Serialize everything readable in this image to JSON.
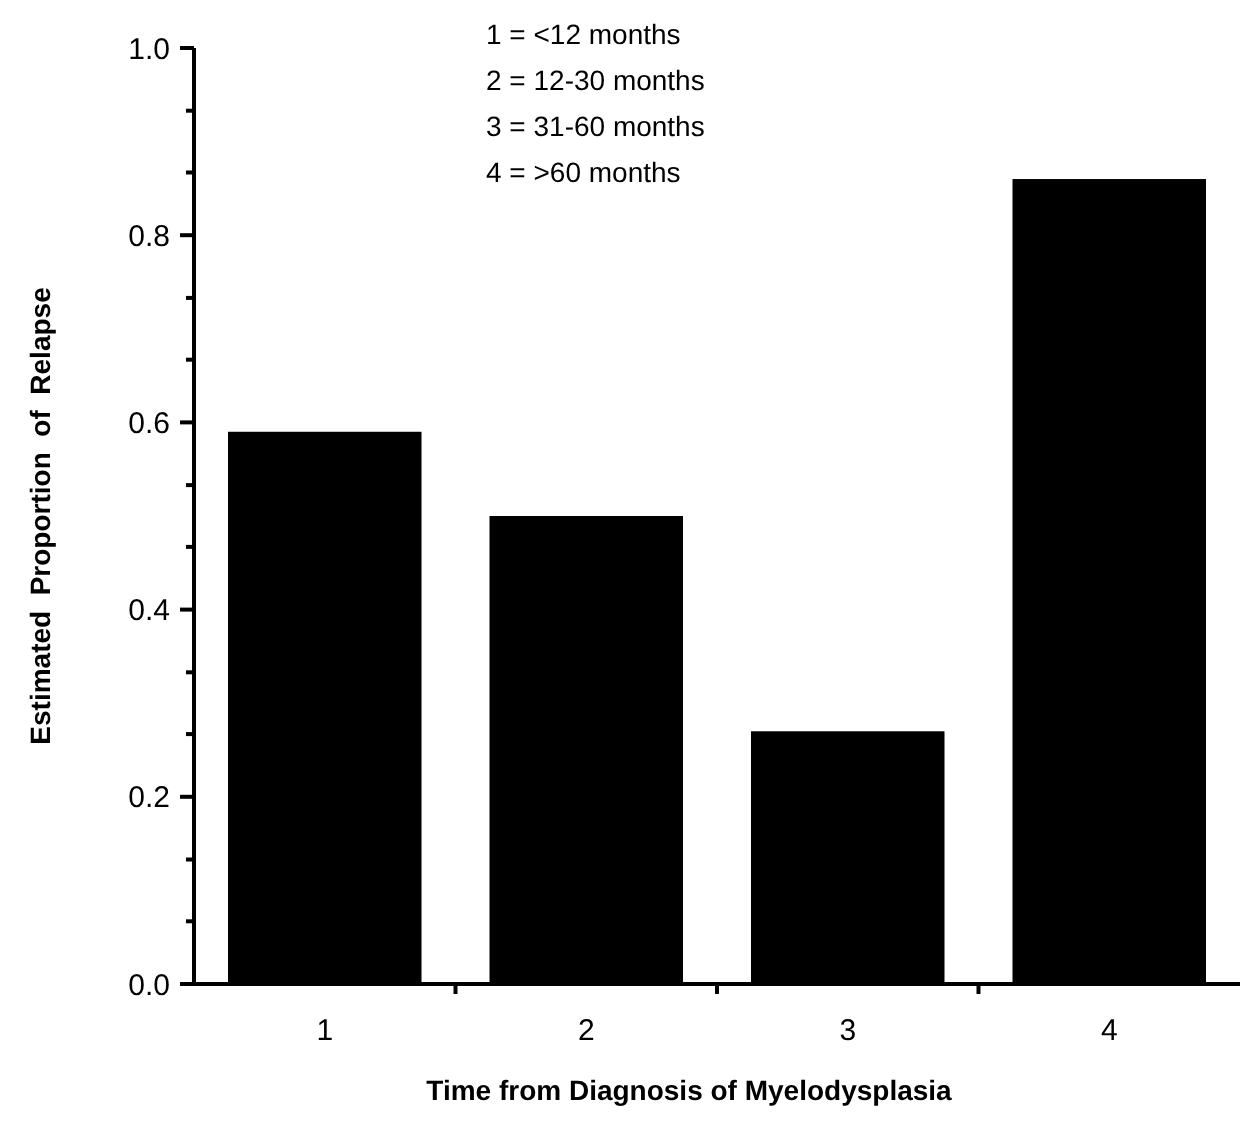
{
  "chart_data": {
    "type": "bar",
    "xlabel": "Time from Diagnosis of Myelodysplasia",
    "ylabel": "Estimated  Proportion  of  Relapse",
    "categories": [
      "1",
      "2",
      "3",
      "4"
    ],
    "values": [
      0.59,
      0.5,
      0.27,
      0.86
    ],
    "color": "#000000",
    "ylim": [
      0,
      1
    ],
    "yticks": [
      {
        "value": 0,
        "label": "0.0"
      },
      {
        "value": 0.067,
        "label": null
      },
      {
        "value": 0.133,
        "label": null
      },
      {
        "value": 0.2,
        "label": "0.2"
      },
      {
        "value": 0.267,
        "label": null
      },
      {
        "value": 0.333,
        "label": null
      },
      {
        "value": 0.4,
        "label": "0.4"
      },
      {
        "value": 0.467,
        "label": null
      },
      {
        "value": 0.533,
        "label": null
      },
      {
        "value": 0.6,
        "label": "0.6"
      },
      {
        "value": 0.667,
        "label": null
      },
      {
        "value": 0.733,
        "label": null
      },
      {
        "value": 0.8,
        "label": "0.8"
      },
      {
        "value": 0.867,
        "label": null
      },
      {
        "value": 0.933,
        "label": null
      },
      {
        "value": 1,
        "label": "1.0"
      }
    ],
    "annotations": [
      "1 = <12 months",
      "2 = 12-30 months",
      "3 = 31-60 months",
      "4 = >60 months"
    ],
    "grid": false
  }
}
